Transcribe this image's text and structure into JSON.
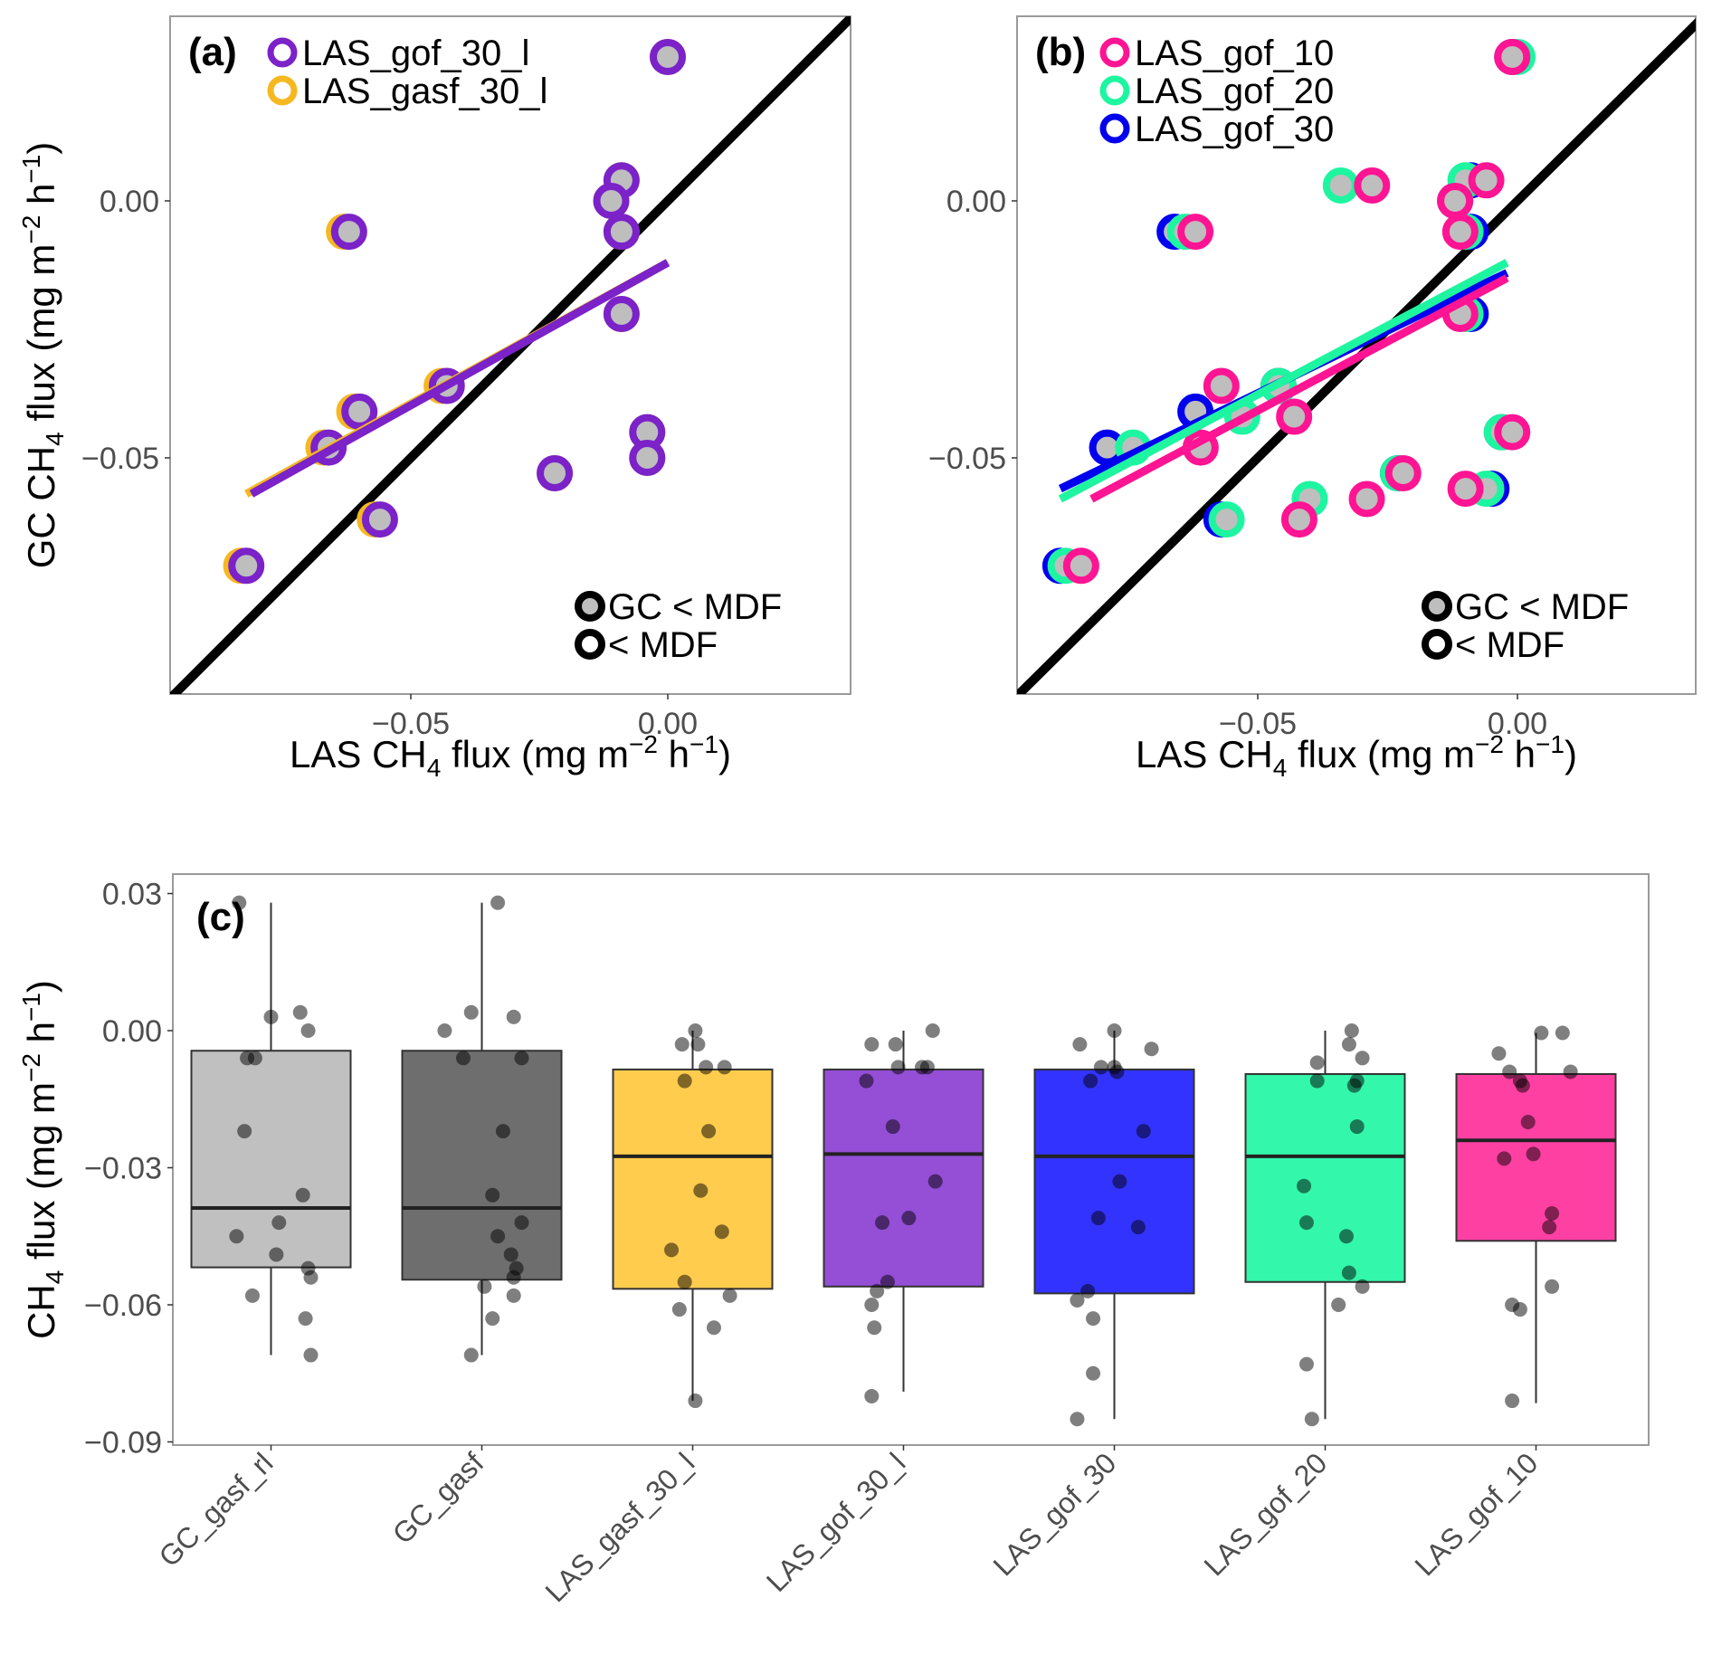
{
  "chart_data": [
    {
      "panel": "a",
      "type": "scatter",
      "panel_label": "(a)",
      "xlabel": "LAS CH4 flux (mg m-2 h-1)",
      "ylabel": "GC CH4 flux (mg m-2 h-1)",
      "xlim": [
        -0.095,
        0.036
      ],
      "ylim": [
        -0.096,
        0.034
      ],
      "xticks": [
        {
          "value": -0.05,
          "label": "−0.05"
        },
        {
          "value": 0.0,
          "label": "0.00"
        }
      ],
      "yticks": [
        {
          "value": 0.0,
          "label": "0.00"
        },
        {
          "value": -0.05,
          "label": "−0.05"
        }
      ],
      "one_to_one_line": true,
      "legend": {
        "series": [
          {
            "name": "LAS_gof_30_l",
            "color": "#7b22c9"
          },
          {
            "name": "LAS_gasf_30_l",
            "color": "#f5b820"
          }
        ],
        "markers": [
          {
            "label": "GC < MDF",
            "filled": true
          },
          {
            "label": "< MDF",
            "filled": false
          }
        ]
      },
      "series": [
        {
          "name": "LAS_gasf_30_l",
          "color": "#f5b820",
          "points": [
            [
              0.0,
              0.028
            ],
            [
              -0.009,
              0.004
            ],
            [
              -0.011,
              0.0
            ],
            [
              -0.009,
              -0.006
            ],
            [
              -0.063,
              -0.006
            ],
            [
              -0.009,
              -0.022
            ],
            [
              -0.044,
              -0.036
            ],
            [
              -0.061,
              -0.041
            ],
            [
              -0.067,
              -0.048
            ],
            [
              -0.004,
              -0.045
            ],
            [
              -0.004,
              -0.05
            ],
            [
              -0.022,
              -0.053
            ],
            [
              -0.057,
              -0.062
            ],
            [
              -0.083,
              -0.071
            ]
          ],
          "fit": [
            [
              -0.082,
              -0.057
            ],
            [
              0.0,
              -0.012
            ]
          ]
        },
        {
          "name": "LAS_gof_30_l",
          "color": "#7b22c9",
          "points": [
            [
              0.0,
              0.028
            ],
            [
              -0.009,
              0.004
            ],
            [
              -0.011,
              0.0
            ],
            [
              -0.009,
              -0.006
            ],
            [
              -0.062,
              -0.006
            ],
            [
              -0.009,
              -0.022
            ],
            [
              -0.043,
              -0.036
            ],
            [
              -0.06,
              -0.041
            ],
            [
              -0.066,
              -0.048
            ],
            [
              -0.004,
              -0.045
            ],
            [
              -0.004,
              -0.05
            ],
            [
              -0.022,
              -0.053
            ],
            [
              -0.056,
              -0.062
            ],
            [
              -0.082,
              -0.071
            ]
          ],
          "fit": [
            [
              -0.081,
              -0.057
            ],
            [
              0.0,
              -0.012
            ]
          ]
        }
      ]
    },
    {
      "panel": "b",
      "type": "scatter",
      "panel_label": "(b)",
      "xlabel": "LAS CH4 flux (mg m-2 h-1)",
      "ylabel": "",
      "xlim": [
        -0.095,
        0.036
      ],
      "ylim": [
        -0.096,
        0.034
      ],
      "xticks": [
        {
          "value": -0.05,
          "label": "−0.05"
        },
        {
          "value": 0.0,
          "label": "0.00"
        }
      ],
      "yticks": [
        {
          "value": 0.0,
          "label": "0.00"
        },
        {
          "value": -0.05,
          "label": "−0.05"
        }
      ],
      "one_to_one_line": true,
      "legend": {
        "series": [
          {
            "name": "LAS_gof_10",
            "color": "#ff1493"
          },
          {
            "name": "LAS_gof_20",
            "color": "#1ef5a0"
          },
          {
            "name": "LAS_gof_30",
            "color": "#0000ee"
          }
        ],
        "markers": [
          {
            "label": "GC < MDF",
            "filled": true
          },
          {
            "label": "< MDF",
            "filled": false
          }
        ]
      },
      "series": [
        {
          "name": "LAS_gof_30",
          "color": "#0000ee",
          "points": [
            [
              -0.001,
              0.028
            ],
            [
              -0.009,
              0.004
            ],
            [
              -0.012,
              0.0
            ],
            [
              -0.009,
              -0.006
            ],
            [
              -0.066,
              -0.006
            ],
            [
              -0.009,
              -0.022
            ],
            [
              -0.046,
              -0.036
            ],
            [
              -0.062,
              -0.041
            ],
            [
              -0.079,
              -0.048
            ],
            [
              -0.003,
              -0.045
            ],
            [
              -0.005,
              -0.056
            ],
            [
              -0.023,
              -0.053
            ],
            [
              -0.057,
              -0.062
            ],
            [
              -0.088,
              -0.071
            ]
          ],
          "fit": [
            [
              -0.088,
              -0.056
            ],
            [
              -0.002,
              -0.014
            ]
          ]
        },
        {
          "name": "LAS_gof_20",
          "color": "#1ef5a0",
          "points": [
            [
              0.0,
              0.028
            ],
            [
              -0.01,
              0.004
            ],
            [
              -0.012,
              0.0
            ],
            [
              -0.01,
              -0.006
            ],
            [
              -0.064,
              -0.006
            ],
            [
              -0.034,
              0.003
            ],
            [
              -0.01,
              -0.022
            ],
            [
              -0.046,
              -0.036
            ],
            [
              -0.053,
              -0.042
            ],
            [
              -0.074,
              -0.048
            ],
            [
              -0.003,
              -0.045
            ],
            [
              -0.006,
              -0.056
            ],
            [
              -0.023,
              -0.053
            ],
            [
              -0.04,
              -0.058
            ],
            [
              -0.056,
              -0.062
            ],
            [
              -0.087,
              -0.071
            ]
          ],
          "fit": [
            [
              -0.088,
              -0.058
            ],
            [
              -0.002,
              -0.012
            ]
          ]
        },
        {
          "name": "LAS_gof_10",
          "color": "#ff1493",
          "points": [
            [
              -0.001,
              0.028
            ],
            [
              -0.006,
              0.004
            ],
            [
              -0.012,
              0.0
            ],
            [
              -0.011,
              -0.006
            ],
            [
              -0.062,
              -0.006
            ],
            [
              -0.028,
              0.003
            ],
            [
              -0.011,
              -0.022
            ],
            [
              -0.057,
              -0.036
            ],
            [
              -0.043,
              -0.042
            ],
            [
              -0.061,
              -0.048
            ],
            [
              -0.001,
              -0.045
            ],
            [
              -0.01,
              -0.056
            ],
            [
              -0.022,
              -0.053
            ],
            [
              -0.029,
              -0.058
            ],
            [
              -0.042,
              -0.062
            ],
            [
              -0.084,
              -0.071
            ]
          ],
          "fit": [
            [
              -0.082,
              -0.058
            ],
            [
              -0.002,
              -0.015
            ]
          ]
        }
      ]
    },
    {
      "panel": "c",
      "type": "box",
      "panel_label": "(c)",
      "xlabel": "",
      "ylabel": "CH4 flux (mg m-2 h-1)",
      "ylim": [
        -0.091,
        0.034
      ],
      "yticks": [
        {
          "value": 0.03,
          "label": "0.03"
        },
        {
          "value": 0.0,
          "label": "0.00"
        },
        {
          "value": -0.03,
          "label": "−0.03"
        },
        {
          "value": -0.06,
          "label": "−0.06"
        },
        {
          "value": -0.09,
          "label": "−0.09"
        }
      ],
      "categories": [
        "GC_gasf_rl",
        "GC_gasf",
        "LAS_gasf_30_l",
        "LAS_gof_30_l",
        "LAS_gof_30",
        "LAS_gof_20",
        "LAS_gof_10"
      ],
      "boxes": [
        {
          "name": "GC_gasf_rl",
          "color": "#c0c0c0",
          "q1": -0.0518,
          "median": -0.0388,
          "q3": -0.0044,
          "whisker_low": -0.071,
          "whisker_high": 0.028,
          "points": [
            [
              -0.12,
              0.028
            ],
            [
              0.0,
              0.003
            ],
            [
              0.11,
              0.004
            ],
            [
              0.14,
              0.0
            ],
            [
              -0.09,
              -0.006
            ],
            [
              -0.06,
              -0.006
            ],
            [
              -0.1,
              -0.022
            ],
            [
              0.12,
              -0.036
            ],
            [
              0.03,
              -0.042
            ],
            [
              -0.13,
              -0.045
            ],
            [
              0.02,
              -0.049
            ],
            [
              0.14,
              -0.052
            ],
            [
              0.15,
              -0.054
            ],
            [
              -0.07,
              -0.058
            ],
            [
              0.13,
              -0.063
            ],
            [
              0.15,
              -0.071
            ]
          ]
        },
        {
          "name": "GC_gasf",
          "color": "#6e6e6e",
          "q1": -0.0545,
          "median": -0.0388,
          "q3": -0.0044,
          "whisker_low": -0.071,
          "whisker_high": 0.028,
          "points": [
            [
              0.06,
              0.028
            ],
            [
              -0.04,
              0.004
            ],
            [
              0.12,
              0.003
            ],
            [
              -0.14,
              0.0
            ],
            [
              -0.07,
              -0.006
            ],
            [
              0.15,
              -0.006
            ],
            [
              0.08,
              -0.022
            ],
            [
              0.04,
              -0.036
            ],
            [
              0.15,
              -0.042
            ],
            [
              0.06,
              -0.045
            ],
            [
              0.11,
              -0.049
            ],
            [
              0.13,
              -0.052
            ],
            [
              0.12,
              -0.054
            ],
            [
              0.01,
              -0.056
            ],
            [
              0.12,
              -0.058
            ],
            [
              0.04,
              -0.063
            ],
            [
              -0.04,
              -0.071
            ]
          ]
        },
        {
          "name": "LAS_gasf_30_l",
          "color": "#ffcc4d",
          "q1": -0.0565,
          "median": -0.0275,
          "q3": -0.0085,
          "whisker_low": -0.081,
          "whisker_high": 0.0,
          "points": [
            [
              0.01,
              0.0
            ],
            [
              -0.04,
              -0.003
            ],
            [
              0.02,
              -0.003
            ],
            [
              0.05,
              -0.008
            ],
            [
              0.12,
              -0.008
            ],
            [
              -0.03,
              -0.011
            ],
            [
              0.06,
              -0.022
            ],
            [
              0.03,
              -0.035
            ],
            [
              0.11,
              -0.044
            ],
            [
              -0.08,
              -0.048
            ],
            [
              -0.03,
              -0.055
            ],
            [
              0.14,
              -0.058
            ],
            [
              -0.05,
              -0.061
            ],
            [
              0.08,
              -0.065
            ],
            [
              0.01,
              -0.081
            ]
          ]
        },
        {
          "name": "LAS_gof_30_l",
          "color": "#944fd6",
          "q1": -0.056,
          "median": -0.027,
          "q3": -0.0085,
          "whisker_low": -0.079,
          "whisker_high": 0.0,
          "points": [
            [
              0.11,
              0.0
            ],
            [
              -0.12,
              -0.003
            ],
            [
              -0.03,
              -0.003
            ],
            [
              -0.02,
              -0.008
            ],
            [
              0.07,
              -0.008
            ],
            [
              0.09,
              -0.008
            ],
            [
              -0.14,
              -0.011
            ],
            [
              -0.04,
              -0.021
            ],
            [
              0.12,
              -0.033
            ],
            [
              0.02,
              -0.041
            ],
            [
              -0.08,
              -0.042
            ],
            [
              -0.06,
              -0.055
            ],
            [
              -0.1,
              -0.057
            ],
            [
              -0.12,
              -0.06
            ],
            [
              -0.11,
              -0.065
            ],
            [
              -0.12,
              -0.08
            ]
          ]
        },
        {
          "name": "LAS_gof_30",
          "color": "#3333ff",
          "q1": -0.0575,
          "median": -0.0275,
          "q3": -0.0085,
          "whisker_low": -0.085,
          "whisker_high": 0.0,
          "points": [
            [
              0.0,
              0.0
            ],
            [
              -0.13,
              -0.003
            ],
            [
              0.14,
              -0.004
            ],
            [
              -0.05,
              -0.008
            ],
            [
              0.0,
              -0.008
            ],
            [
              0.01,
              -0.009
            ],
            [
              -0.09,
              -0.011
            ],
            [
              0.11,
              -0.022
            ],
            [
              0.02,
              -0.033
            ],
            [
              -0.06,
              -0.041
            ],
            [
              0.09,
              -0.043
            ],
            [
              -0.1,
              -0.057
            ],
            [
              -0.14,
              -0.059
            ],
            [
              -0.08,
              -0.063
            ],
            [
              -0.08,
              -0.075
            ],
            [
              -0.14,
              -0.085
            ]
          ]
        },
        {
          "name": "LAS_gof_20",
          "color": "#33f7ab",
          "q1": -0.055,
          "median": -0.0275,
          "q3": -0.0095,
          "whisker_low": -0.085,
          "whisker_high": 0.0,
          "points": [
            [
              0.1,
              0.0
            ],
            [
              0.09,
              -0.003
            ],
            [
              -0.03,
              -0.007
            ],
            [
              0.14,
              -0.006
            ],
            [
              -0.03,
              -0.011
            ],
            [
              0.12,
              -0.011
            ],
            [
              0.11,
              -0.012
            ],
            [
              0.12,
              -0.021
            ],
            [
              -0.08,
              -0.034
            ],
            [
              -0.07,
              -0.042
            ],
            [
              0.08,
              -0.045
            ],
            [
              0.09,
              -0.053
            ],
            [
              0.14,
              -0.056
            ],
            [
              0.05,
              -0.06
            ],
            [
              -0.07,
              -0.073
            ],
            [
              -0.05,
              -0.085
            ]
          ]
        },
        {
          "name": "LAS_gof_10",
          "color": "#ff40a3",
          "q1": -0.046,
          "median": -0.024,
          "q3": -0.0095,
          "whisker_low": -0.0815,
          "whisker_high": -0.0005,
          "points": [
            [
              0.02,
              -0.0005
            ],
            [
              0.1,
              -0.0005
            ],
            [
              -0.14,
              -0.005
            ],
            [
              -0.1,
              -0.009
            ],
            [
              0.13,
              -0.009
            ],
            [
              -0.06,
              -0.011
            ],
            [
              -0.05,
              -0.012
            ],
            [
              -0.03,
              -0.02
            ],
            [
              -0.12,
              -0.028
            ],
            [
              -0.01,
              -0.027
            ],
            [
              0.06,
              -0.04
            ],
            [
              0.05,
              -0.043
            ],
            [
              0.06,
              -0.056
            ],
            [
              -0.09,
              -0.06
            ],
            [
              -0.06,
              -0.061
            ],
            [
              -0.09,
              -0.081
            ]
          ]
        }
      ]
    }
  ],
  "text": {
    "a_tag": "(a)",
    "b_tag": "(b)",
    "c_tag": "(c)",
    "mdf_filled": "GC < MDF",
    "mdf_open": "< MDF"
  }
}
